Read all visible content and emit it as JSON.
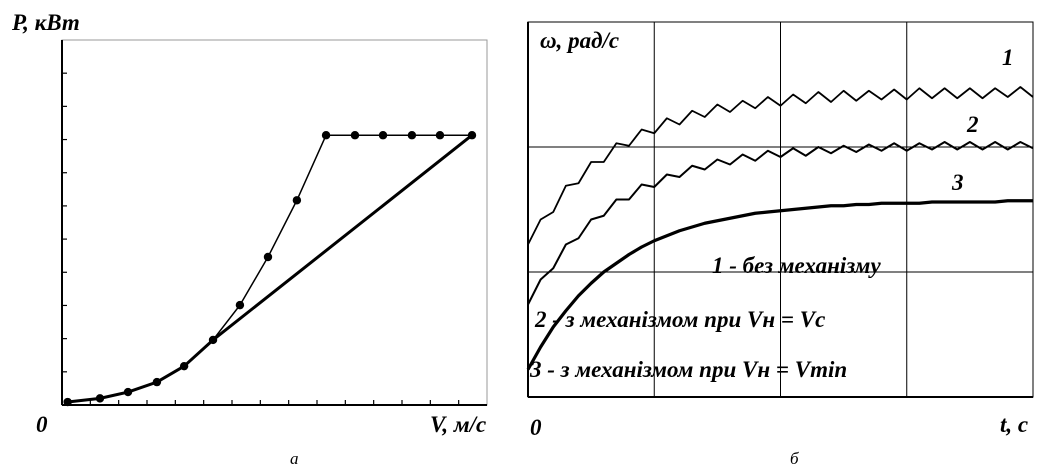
{
  "chart_data": [
    {
      "type": "line",
      "y_label": "P, кВт",
      "x_label": "V, м/с",
      "origin_label": "0",
      "caption": "а",
      "xlim": [
        0,
        15
      ],
      "ylim": [
        0,
        11
      ],
      "xticks": [
        1,
        2,
        3,
        4,
        5,
        6,
        7,
        8,
        9,
        10,
        11,
        12,
        13,
        14
      ],
      "yticks": [
        1,
        2,
        3,
        4,
        5,
        6,
        7,
        8,
        9,
        10
      ],
      "series": [
        {
          "color": "#000000",
          "markers": true,
          "x": [
            0.2,
            1.34,
            2.33,
            3.35,
            4.31,
            5.33,
            6.28,
            7.27,
            8.29,
            9.32,
            10.34,
            11.33,
            12.35,
            13.34,
            14.47
          ],
          "values": [
            0.09,
            0.2,
            0.39,
            0.69,
            1.17,
            1.96,
            3.01,
            4.46,
            6.17,
            8.13,
            8.13,
            8.13,
            8.13,
            8.13,
            8.13
          ]
        },
        {
          "color": "#000000",
          "markers": false,
          "x": [
            0.2,
            1.34,
            2.33,
            3.35,
            4.31,
            5.33,
            14.47
          ],
          "values": [
            0.09,
            0.2,
            0.39,
            0.69,
            1.17,
            1.96,
            8.13
          ]
        }
      ]
    },
    {
      "type": "line",
      "y_label": "ω, рад/с",
      "x_label": "t, с",
      "origin_label": "0",
      "caption": "б",
      "xlim": [
        0,
        4
      ],
      "ylim": [
        0,
        3
      ],
      "xticks": [
        1,
        2,
        3
      ],
      "yticks": [
        1,
        2
      ],
      "grid": true,
      "x": [
        0,
        0.1,
        0.2,
        0.3,
        0.4,
        0.5,
        0.6,
        0.7,
        0.8,
        0.9,
        1.0,
        1.1,
        1.2,
        1.3,
        1.4,
        1.5,
        1.6,
        1.7,
        1.8,
        1.9,
        2.0,
        2.1,
        2.2,
        2.3,
        2.4,
        2.5,
        2.6,
        2.7,
        2.8,
        2.9,
        3.0,
        3.1,
        3.2,
        3.3,
        3.4,
        3.5,
        3.6,
        3.7,
        3.8,
        3.9,
        4.0
      ],
      "series": [
        {
          "name": "1",
          "color": "#000000",
          "values": [
            1.22,
            1.42,
            1.48,
            1.69,
            1.71,
            1.88,
            1.88,
            2.03,
            2.01,
            2.14,
            2.11,
            2.23,
            2.18,
            2.29,
            2.24,
            2.34,
            2.28,
            2.37,
            2.31,
            2.4,
            2.33,
            2.42,
            2.35,
            2.44,
            2.36,
            2.45,
            2.37,
            2.45,
            2.38,
            2.46,
            2.38,
            2.47,
            2.39,
            2.47,
            2.39,
            2.47,
            2.39,
            2.47,
            2.4,
            2.48,
            2.4
          ]
        },
        {
          "name": "2",
          "color": "#000000",
          "values": [
            0.74,
            0.94,
            1.03,
            1.22,
            1.27,
            1.42,
            1.45,
            1.58,
            1.58,
            1.7,
            1.68,
            1.78,
            1.76,
            1.85,
            1.82,
            1.9,
            1.86,
            1.94,
            1.89,
            1.97,
            1.92,
            1.99,
            1.93,
            2.0,
            1.95,
            2.01,
            1.96,
            2.02,
            1.97,
            2.03,
            1.97,
            2.03,
            1.98,
            2.04,
            1.98,
            2.04,
            1.98,
            2.04,
            1.98,
            2.04,
            1.99
          ]
        },
        {
          "name": "3",
          "color": "#000000",
          "values": [
            0.22,
            0.4,
            0.56,
            0.69,
            0.81,
            0.91,
            1.0,
            1.07,
            1.14,
            1.2,
            1.25,
            1.29,
            1.33,
            1.36,
            1.39,
            1.41,
            1.43,
            1.45,
            1.47,
            1.48,
            1.49,
            1.5,
            1.51,
            1.52,
            1.53,
            1.53,
            1.54,
            1.54,
            1.55,
            1.55,
            1.55,
            1.55,
            1.56,
            1.56,
            1.56,
            1.56,
            1.56,
            1.56,
            1.57,
            1.57,
            1.57
          ]
        }
      ],
      "annotations": [
        "1 - без механізму",
        "2 - з механізмом при Vн = Vc",
        "3 - з механізмом при Vн = Vmin"
      ]
    }
  ]
}
